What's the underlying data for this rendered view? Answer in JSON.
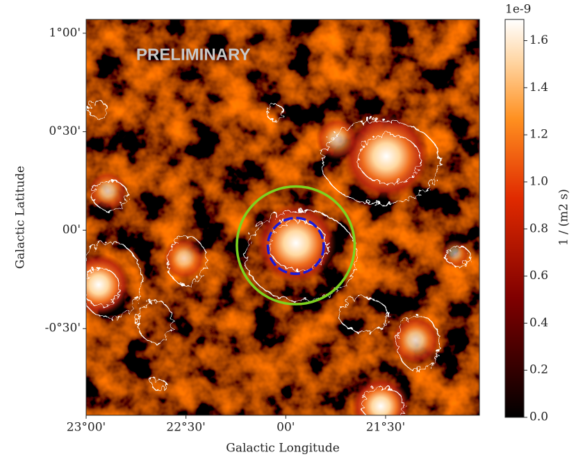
{
  "chart_data": {
    "type": "skymap",
    "annotation": "PRELIMINARY",
    "xlabel": "Galactic Longitude",
    "ylabel": "Galactic Latitude",
    "xlim": [
      23.0,
      21.03
    ],
    "ylim": [
      -0.94,
      1.07
    ],
    "xticks": [
      {
        "value": 23.0,
        "label": "23°00'"
      },
      {
        "value": 22.5,
        "label": "22°30'"
      },
      {
        "value": 22.0,
        "label": "00'"
      },
      {
        "value": 21.5,
        "label": "21°30'"
      }
    ],
    "yticks": [
      {
        "value": 1.0,
        "label": "1°00'"
      },
      {
        "value": 0.5,
        "label": "0°30'"
      },
      {
        "value": 0.0,
        "label": "00'"
      },
      {
        "value": -0.5,
        "label": "-0°30'"
      }
    ],
    "colorbar": {
      "label": "1 / (m2 s)",
      "offset": "1e-9",
      "lim": [
        0,
        1.69
      ],
      "ticks": [
        {
          "value": 0,
          "label": "0.0"
        },
        0.2,
        0.4,
        0.6,
        0.8,
        {
          "value": 1,
          "label": "1.0"
        },
        1.2,
        1.4,
        1.6
      ]
    },
    "regions": [
      {
        "color": "#7fd21e",
        "style": "solid",
        "center": [
          21.95,
          -0.077
        ],
        "radius": 0.295
      },
      {
        "color": "#1a1adb",
        "style": "dashed",
        "center": [
          21.95,
          -0.08
        ],
        "radius": 0.14
      }
    ]
  }
}
